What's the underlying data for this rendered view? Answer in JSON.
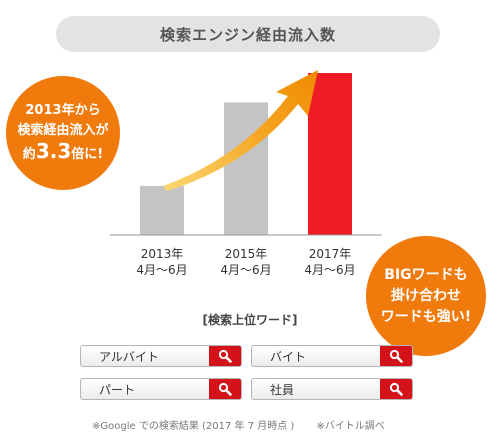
{
  "title": "検索エンジン経由流入数",
  "badge_left": {
    "line1": "2013年から",
    "line2": "検索経由流入が",
    "line3_pre": "約",
    "line3_big": "3.3",
    "line3_post": "倍に!"
  },
  "badge_right": {
    "line1": "BIGワードも",
    "line2": "掛け合わせ",
    "line3": "ワードも強い!"
  },
  "chart_data": {
    "type": "bar",
    "categories": [
      {
        "year": "2013年",
        "period": "4月〜6月"
      },
      {
        "year": "2015年",
        "period": "4月〜6月"
      },
      {
        "year": "2017年",
        "period": "4月〜6月"
      }
    ],
    "values": [
      1,
      2.7,
      3.3
    ],
    "colors": [
      "#c4c4c4",
      "#c4c4c4",
      "#ee1c25"
    ],
    "ylim": [
      0,
      3.3
    ],
    "title": "検索エンジン経由流入数",
    "xlabel": "",
    "ylabel": "",
    "grid": false
  },
  "search_words": {
    "heading": "[検索上位ワード]",
    "items": [
      "アルバイト",
      "バイト",
      "パート",
      "社員"
    ]
  },
  "footnote": {
    "left": "※Google での検索結果 (2017 年 7 月時点 )",
    "right": "※バイトル調べ"
  },
  "colors": {
    "badge": "#f07a0c",
    "search_button": "#d3121a",
    "bar_gray": "#c4c4c4",
    "bar_red": "#ee1c25"
  }
}
